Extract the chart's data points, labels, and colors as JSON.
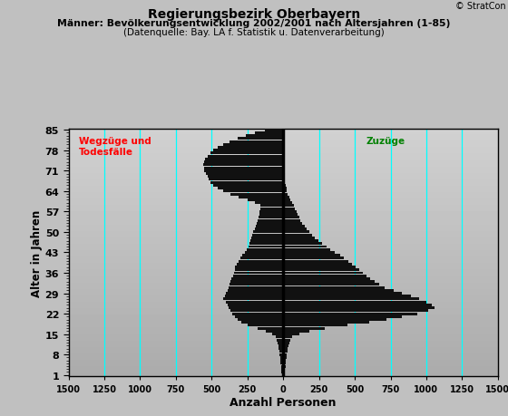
{
  "title1": "Regierungsbezirk Oberbayern",
  "title2": "Männer: Bevölkerungsentwicklung 2002/2001 nach Altersjahren (1-85)",
  "title3": "(Datenquelle: Bay. LA f. Statistik u. Datenverarbeitung)",
  "xlabel": "Anzahl Personen",
  "ylabel": "Alter in Jahren",
  "copyright": "© StratCon",
  "label_left": "Wegzüge und\nTodesfälle",
  "label_right": "Zuzüge",
  "xlim": [
    -1500,
    1500
  ],
  "bg_color": "#c0c0c0",
  "bar_color": "#111111",
  "grid_color": "#00ffff",
  "ages": [
    1,
    2,
    3,
    4,
    5,
    6,
    7,
    8,
    9,
    10,
    11,
    12,
    13,
    14,
    15,
    16,
    17,
    18,
    19,
    20,
    21,
    22,
    23,
    24,
    25,
    26,
    27,
    28,
    29,
    30,
    31,
    32,
    33,
    34,
    35,
    36,
    37,
    38,
    39,
    40,
    41,
    42,
    43,
    44,
    45,
    46,
    47,
    48,
    49,
    50,
    51,
    52,
    53,
    54,
    55,
    56,
    57,
    58,
    59,
    60,
    61,
    62,
    63,
    64,
    65,
    66,
    67,
    68,
    69,
    70,
    71,
    72,
    73,
    74,
    75,
    76,
    77,
    78,
    79,
    80,
    81,
    82,
    83,
    84,
    85
  ],
  "left_values": [
    10,
    12,
    14,
    16,
    18,
    20,
    22,
    25,
    28,
    32,
    36,
    40,
    45,
    55,
    80,
    120,
    180,
    250,
    290,
    320,
    340,
    355,
    370,
    380,
    385,
    400,
    420,
    410,
    400,
    390,
    380,
    375,
    370,
    360,
    350,
    345,
    340,
    335,
    325,
    315,
    300,
    285,
    270,
    255,
    245,
    235,
    228,
    222,
    215,
    208,
    200,
    192,
    185,
    178,
    172,
    168,
    165,
    162,
    158,
    200,
    250,
    310,
    370,
    420,
    460,
    490,
    510,
    520,
    530,
    540,
    550,
    555,
    560,
    555,
    545,
    530,
    510,
    490,
    460,
    420,
    375,
    320,
    260,
    195,
    130
  ],
  "right_values": [
    10,
    12,
    14,
    16,
    18,
    20,
    22,
    25,
    28,
    32,
    36,
    42,
    50,
    65,
    110,
    185,
    290,
    450,
    600,
    720,
    830,
    940,
    1010,
    1060,
    1040,
    1000,
    950,
    890,
    830,
    770,
    710,
    670,
    640,
    610,
    580,
    555,
    530,
    505,
    480,
    455,
    425,
    395,
    360,
    330,
    300,
    270,
    245,
    222,
    200,
    182,
    165,
    150,
    135,
    122,
    110,
    100,
    91,
    83,
    72,
    60,
    50,
    40,
    32,
    26,
    21,
    17,
    14,
    11,
    9,
    7,
    6,
    5,
    4,
    3,
    3,
    2,
    2,
    2,
    1,
    1,
    1,
    1,
    1,
    1,
    1
  ]
}
